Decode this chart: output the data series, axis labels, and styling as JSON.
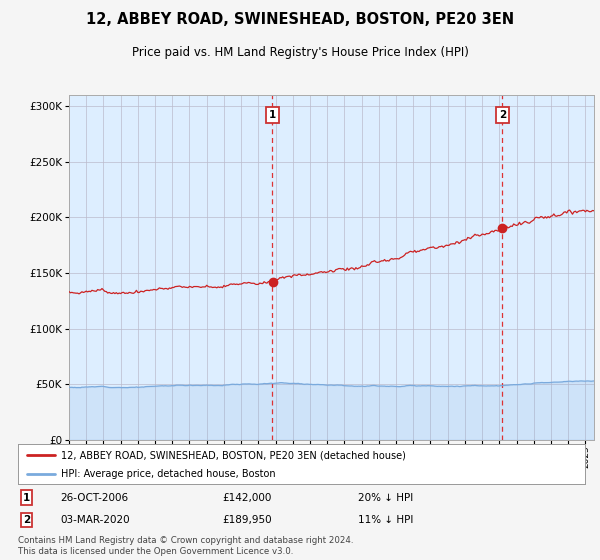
{
  "title": "12, ABBEY ROAD, SWINESHEAD, BOSTON, PE20 3EN",
  "subtitle": "Price paid vs. HM Land Registry's House Price Index (HPI)",
  "legend_property": "12, ABBEY ROAD, SWINESHEAD, BOSTON, PE20 3EN (detached house)",
  "legend_hpi": "HPI: Average price, detached house, Boston",
  "transaction1_date": "26-OCT-2006",
  "transaction1_price": "£142,000",
  "transaction1_hpi": "20% ↓ HPI",
  "transaction1_year": 2006.82,
  "transaction1_value": 142000,
  "transaction2_date": "03-MAR-2020",
  "transaction2_price": "£189,950",
  "transaction2_hpi": "11% ↓ HPI",
  "transaction2_year": 2020.17,
  "transaction2_value": 189950,
  "footer": "Contains HM Land Registry data © Crown copyright and database right 2024.\nThis data is licensed under the Open Government Licence v3.0.",
  "hpi_color": "#7aaadd",
  "property_color": "#cc2222",
  "marker_color": "#cc2222",
  "dashed_line_color": "#cc4444",
  "background_color": "#ddeeff",
  "fig_bg": "#f5f5f5",
  "ylim": [
    0,
    310000
  ],
  "xlim_start": 1995.0,
  "xlim_end": 2025.5
}
